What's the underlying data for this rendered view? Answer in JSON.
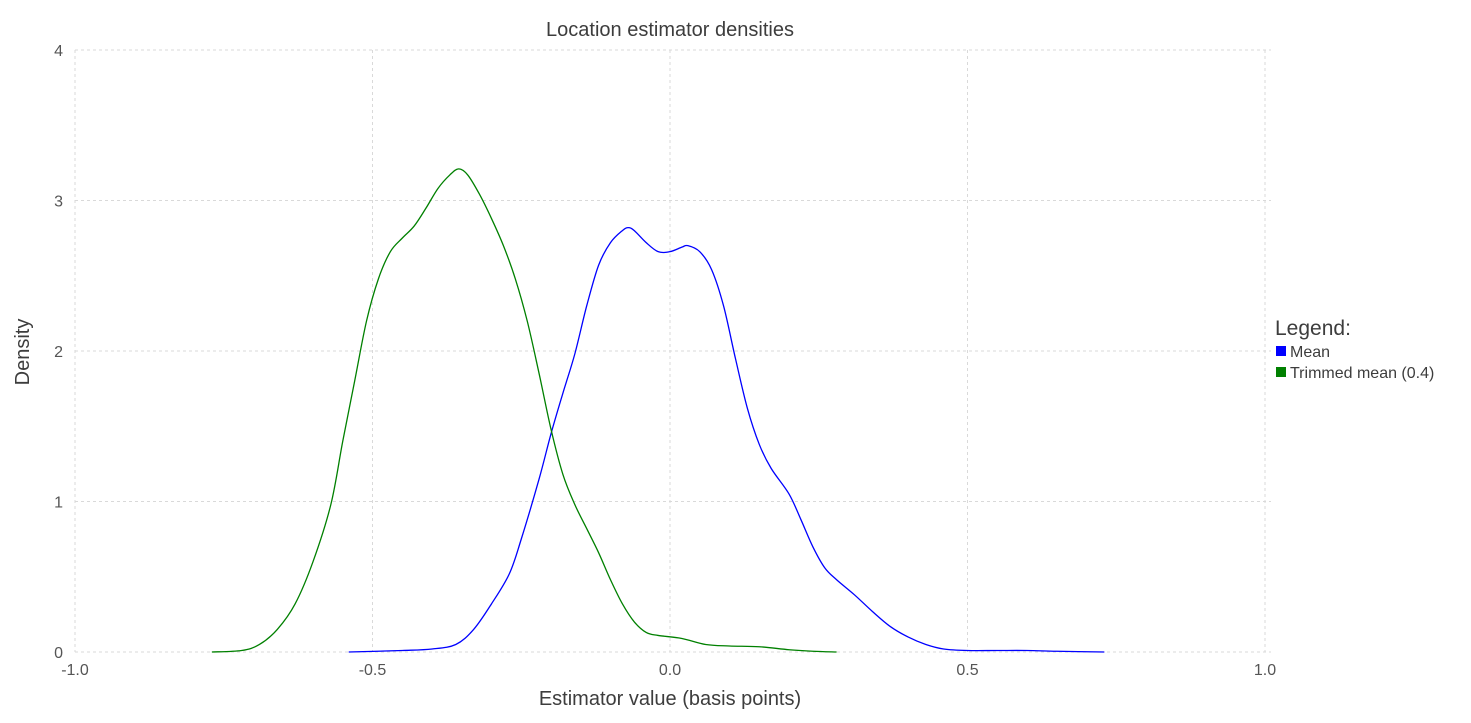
{
  "chart_data": {
    "type": "line",
    "title": "Location estimator densities",
    "xlabel": "Estimator value (basis points)",
    "ylabel": "Density",
    "xlim": [
      -1.0,
      1.0
    ],
    "ylim": [
      0,
      4
    ],
    "x_ticks": [
      "-1.0",
      "-0.5",
      "0.0",
      "0.5",
      "1.0"
    ],
    "y_ticks": [
      "0",
      "1",
      "2",
      "3",
      "4"
    ],
    "grid": true,
    "legend": {
      "title": "Legend:",
      "placement": "right"
    },
    "series": [
      {
        "name": "Mean",
        "color": "#0000ff",
        "points": [
          [
            -0.54,
            0.0
          ],
          [
            -0.45,
            0.01
          ],
          [
            -0.4,
            0.02
          ],
          [
            -0.36,
            0.05
          ],
          [
            -0.33,
            0.15
          ],
          [
            -0.3,
            0.32
          ],
          [
            -0.27,
            0.52
          ],
          [
            -0.25,
            0.75
          ],
          [
            -0.22,
            1.15
          ],
          [
            -0.2,
            1.45
          ],
          [
            -0.18,
            1.72
          ],
          [
            -0.16,
            1.98
          ],
          [
            -0.14,
            2.3
          ],
          [
            -0.12,
            2.57
          ],
          [
            -0.1,
            2.72
          ],
          [
            -0.08,
            2.8
          ],
          [
            -0.07,
            2.82
          ],
          [
            -0.06,
            2.8
          ],
          [
            -0.04,
            2.72
          ],
          [
            -0.02,
            2.66
          ],
          [
            0.0,
            2.66
          ],
          [
            0.02,
            2.69
          ],
          [
            0.03,
            2.7
          ],
          [
            0.05,
            2.66
          ],
          [
            0.07,
            2.54
          ],
          [
            0.09,
            2.3
          ],
          [
            0.11,
            1.95
          ],
          [
            0.13,
            1.62
          ],
          [
            0.15,
            1.38
          ],
          [
            0.17,
            1.22
          ],
          [
            0.2,
            1.05
          ],
          [
            0.22,
            0.88
          ],
          [
            0.24,
            0.7
          ],
          [
            0.26,
            0.56
          ],
          [
            0.28,
            0.48
          ],
          [
            0.31,
            0.38
          ],
          [
            0.34,
            0.27
          ],
          [
            0.37,
            0.17
          ],
          [
            0.4,
            0.1
          ],
          [
            0.43,
            0.05
          ],
          [
            0.46,
            0.02
          ],
          [
            0.5,
            0.01
          ],
          [
            0.55,
            0.01
          ],
          [
            0.6,
            0.01
          ],
          [
            0.65,
            0.005
          ],
          [
            0.73,
            0.0
          ]
        ]
      },
      {
        "name": "Trimmed mean (0.4)",
        "color": "#008000",
        "points": [
          [
            -0.77,
            0.0
          ],
          [
            -0.72,
            0.01
          ],
          [
            -0.69,
            0.05
          ],
          [
            -0.66,
            0.15
          ],
          [
            -0.63,
            0.32
          ],
          [
            -0.6,
            0.6
          ],
          [
            -0.57,
            0.98
          ],
          [
            -0.55,
            1.4
          ],
          [
            -0.53,
            1.8
          ],
          [
            -0.51,
            2.2
          ],
          [
            -0.49,
            2.48
          ],
          [
            -0.47,
            2.66
          ],
          [
            -0.45,
            2.75
          ],
          [
            -0.43,
            2.83
          ],
          [
            -0.41,
            2.95
          ],
          [
            -0.39,
            3.08
          ],
          [
            -0.37,
            3.17
          ],
          [
            -0.355,
            3.21
          ],
          [
            -0.34,
            3.17
          ],
          [
            -0.32,
            3.04
          ],
          [
            -0.3,
            2.88
          ],
          [
            -0.28,
            2.7
          ],
          [
            -0.26,
            2.48
          ],
          [
            -0.24,
            2.2
          ],
          [
            -0.22,
            1.85
          ],
          [
            -0.2,
            1.48
          ],
          [
            -0.18,
            1.18
          ],
          [
            -0.16,
            0.98
          ],
          [
            -0.14,
            0.82
          ],
          [
            -0.12,
            0.66
          ],
          [
            -0.1,
            0.48
          ],
          [
            -0.08,
            0.32
          ],
          [
            -0.06,
            0.2
          ],
          [
            -0.04,
            0.13
          ],
          [
            -0.02,
            0.11
          ],
          [
            0.02,
            0.09
          ],
          [
            0.06,
            0.05
          ],
          [
            0.1,
            0.04
          ],
          [
            0.15,
            0.035
          ],
          [
            0.2,
            0.015
          ],
          [
            0.24,
            0.005
          ],
          [
            0.28,
            0.0
          ]
        ]
      }
    ]
  }
}
